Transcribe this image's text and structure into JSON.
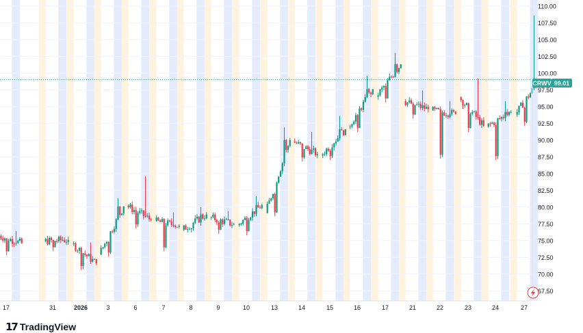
{
  "chart_data": {
    "type": "candlestick",
    "symbol": "CRWV",
    "last_price": "99.01",
    "ylim": [
      66.0,
      110.9
    ],
    "y_ticks": [
      "110.00",
      "107.50",
      "105.00",
      "102.50",
      "100.00",
      "97.50",
      "95.00",
      "92.50",
      "90.00",
      "87.50",
      "85.00",
      "82.50",
      "80.00",
      "77.50",
      "75.00",
      "72.50",
      "70.00",
      "67.50"
    ],
    "x_labels": [
      "17",
      "31",
      "2026",
      "3",
      "6",
      "7",
      "8",
      "9",
      "10",
      "13",
      "14",
      "15",
      "16",
      "17",
      "21",
      "22",
      "23",
      "24",
      "27"
    ],
    "x_bold_label": "2026",
    "colors": {
      "up": "#089981",
      "down": "#F23645",
      "last_line": "#26A69A",
      "price_badge": "#26A69A",
      "grid": "#F0F3FA",
      "axis_text": "#131722",
      "session_pre": "#FFF3E0",
      "session_post": "#E3EBFD"
    },
    "series_description": "OHLC sessions (day start, mid-day, end)",
    "days": [
      {
        "label": "17",
        "o": 75.8,
        "h": 76.4,
        "l": 72.8,
        "c": 74.6
      },
      {
        "label": "31",
        "o": 74.9,
        "h": 75.6,
        "l": 73.4,
        "c": 75.1
      },
      {
        "label": "2026",
        "o": 74.5,
        "h": 74.7,
        "l": 70.6,
        "c": 71.6
      },
      {
        "label": "3",
        "o": 72.9,
        "h": 81.3,
        "l": 72.6,
        "c": 80.1
      },
      {
        "label": "6",
        "o": 80.2,
        "h": 84.6,
        "l": 76.8,
        "c": 78.1
      },
      {
        "label": "7",
        "o": 77.9,
        "h": 79.2,
        "l": 73.4,
        "c": 77.2
      },
      {
        "label": "8",
        "o": 76.6,
        "h": 80.0,
        "l": 76.2,
        "c": 78.9
      },
      {
        "label": "9",
        "o": 78.5,
        "h": 79.4,
        "l": 76.0,
        "c": 77.4
      },
      {
        "label": "10",
        "o": 77.3,
        "h": 81.6,
        "l": 75.8,
        "c": 80.3
      },
      {
        "label": "13",
        "o": 79.1,
        "h": 91.9,
        "l": 78.6,
        "c": 90.0
      },
      {
        "label": "14",
        "o": 89.8,
        "h": 91.2,
        "l": 86.8,
        "c": 87.9
      },
      {
        "label": "15",
        "o": 87.7,
        "h": 93.6,
        "l": 87.0,
        "c": 91.6
      },
      {
        "label": "16",
        "o": 91.9,
        "h": 99.6,
        "l": 91.2,
        "c": 97.6
      },
      {
        "label": "17",
        "o": 96.5,
        "h": 103.0,
        "l": 95.6,
        "c": 101.3
      },
      {
        "label": "21",
        "o": 95.8,
        "h": 97.4,
        "l": 93.2,
        "c": 94.6
      },
      {
        "label": "22",
        "o": 94.4,
        "h": 95.8,
        "l": 87.2,
        "c": 93.9
      },
      {
        "label": "23",
        "o": 96.4,
        "h": 99.2,
        "l": 91.2,
        "c": 92.1
      },
      {
        "label": "24",
        "o": 92.0,
        "h": 95.8,
        "l": 87.0,
        "c": 94.2
      },
      {
        "label": "27",
        "o": 93.8,
        "h": 108.6,
        "l": 92.1,
        "c": 99.0
      }
    ]
  },
  "footer": {
    "brand": "TradingView",
    "logo_mark": "17"
  }
}
